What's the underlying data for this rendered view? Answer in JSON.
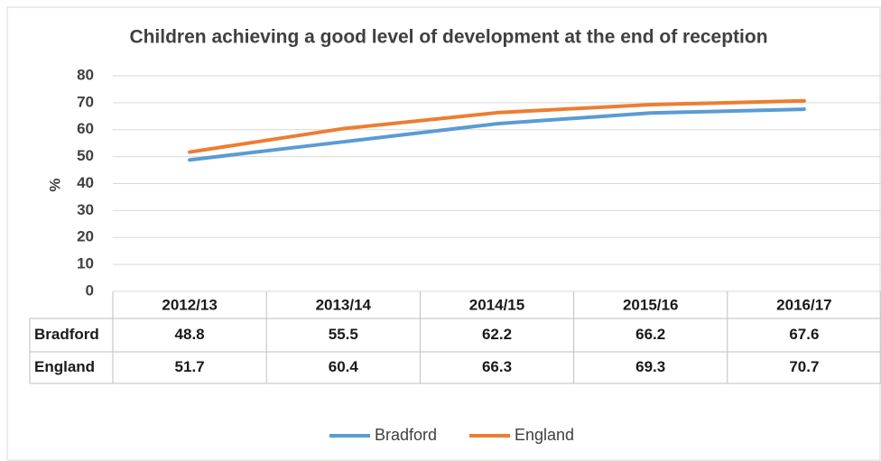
{
  "chart_data": {
    "type": "line",
    "title": "Children achieving a good level of development at the end of reception",
    "y_label": "%",
    "categories": [
      "2012/13",
      "2013/14",
      "2014/15",
      "2015/16",
      "2016/17"
    ],
    "series": [
      {
        "name": "Bradford",
        "color": "#5b9bd5",
        "values": [
          48.8,
          55.5,
          62.2,
          66.2,
          67.6
        ]
      },
      {
        "name": "England",
        "color": "#ed7d31",
        "values": [
          51.7,
          60.4,
          66.3,
          69.3,
          70.7
        ]
      }
    ],
    "ylim": [
      0,
      80
    ],
    "yticks": [
      0,
      10,
      20,
      30,
      40,
      50,
      60,
      70,
      80
    ],
    "grid": true,
    "legend": "bottom",
    "data_table": true
  }
}
